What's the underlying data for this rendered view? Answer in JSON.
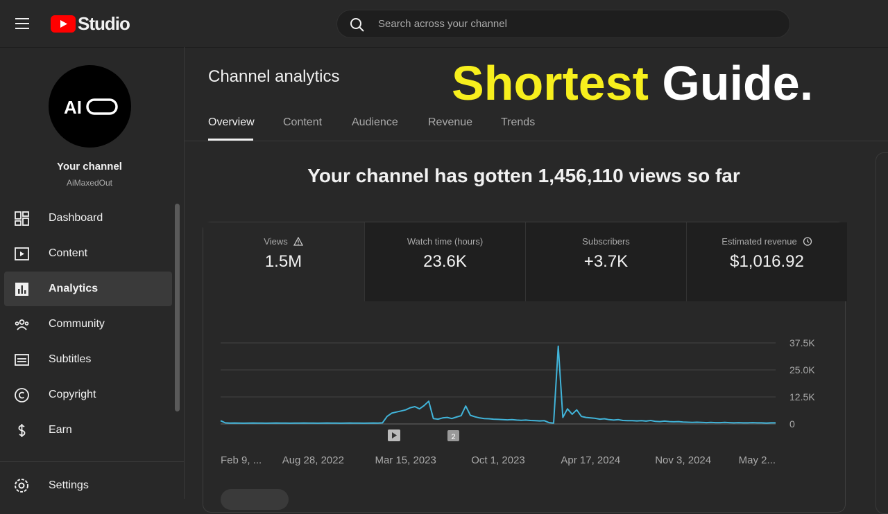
{
  "header": {
    "logo": "Studio",
    "search_placeholder": "Search across your channel"
  },
  "sidebar": {
    "avatar_text": "AI",
    "channel_title": "Your channel",
    "channel_name": "AiMaxedOut",
    "nav": [
      "Dashboard",
      "Content",
      "Analytics",
      "Community",
      "Subtitles",
      "Copyright",
      "Earn"
    ],
    "settings": "Settings"
  },
  "page": {
    "title": "Channel analytics",
    "tabs": [
      "Overview",
      "Content",
      "Audience",
      "Revenue",
      "Trends"
    ],
    "overlay": [
      "Shortest",
      "Guide."
    ],
    "headline": "Your channel has gotten 1,456,110 views so far"
  },
  "metrics": [
    {
      "label": "Views",
      "value": "1.5M"
    },
    {
      "label": "Watch time (hours)",
      "value": "23.6K"
    },
    {
      "label": "Subscribers",
      "value": "+3.7K"
    },
    {
      "label": "Estimated revenue",
      "value": "$1,016.92"
    }
  ],
  "chart_data": {
    "type": "line",
    "categories": [
      "Feb 9, ...",
      null,
      null,
      null,
      null,
      null,
      null,
      null,
      null,
      null,
      null,
      null,
      null,
      null,
      null,
      null,
      null,
      null,
      null,
      null,
      "Aug 28, 2022",
      null,
      null,
      null,
      null,
      null,
      null,
      null,
      null,
      null,
      null,
      null,
      null,
      null,
      null,
      null,
      null,
      null,
      null,
      null,
      "Mar 15, 2023",
      null,
      null,
      null,
      null,
      null,
      null,
      null,
      null,
      null,
      null,
      null,
      null,
      null,
      null,
      null,
      null,
      null,
      null,
      null,
      "Oct 1, 2023",
      null,
      null,
      null,
      null,
      null,
      null,
      null,
      null,
      null,
      null,
      null,
      null,
      null,
      null,
      null,
      null,
      null,
      null,
      null,
      "Apr 17, 2024",
      null,
      null,
      null,
      null,
      null,
      null,
      null,
      null,
      null,
      null,
      null,
      null,
      null,
      null,
      null,
      null,
      null,
      null,
      null,
      "Nov 3, 2024",
      null,
      null,
      null,
      null,
      null,
      null,
      null,
      null,
      null,
      null,
      null,
      null,
      null,
      null,
      null,
      null,
      null,
      null,
      null,
      "May 2..."
    ],
    "series": [
      {
        "name": "Views",
        "color": "#41b4d9",
        "values": [
          1500,
          500,
          400,
          450,
          400,
          350,
          400,
          450,
          400,
          400,
          350,
          400,
          450,
          400,
          400,
          350,
          400,
          400,
          450,
          400,
          400,
          350,
          400,
          450,
          400,
          400,
          350,
          400,
          450,
          400,
          400,
          350,
          400,
          450,
          400,
          500,
          3500,
          5000,
          5500,
          6000,
          6500,
          7500,
          8000,
          7000,
          8500,
          10500,
          2500,
          2200,
          2800,
          3000,
          2500,
          3200,
          3800,
          8300,
          4000,
          3300,
          2800,
          2500,
          2400,
          2200,
          2100,
          2000,
          1900,
          2000,
          1800,
          1700,
          1800,
          1600,
          1500,
          1400,
          1500,
          600,
          400,
          36000,
          3000,
          7000,
          4500,
          6500,
          3500,
          3000,
          2800,
          2600,
          2200,
          2400,
          2000,
          1800,
          2000,
          1600,
          1500,
          1500,
          1400,
          1500,
          1300,
          1600,
          1200,
          1100,
          1300,
          1100,
          1000,
          1100,
          900,
          800,
          700,
          800,
          700,
          600,
          700,
          600,
          600,
          700,
          600,
          500,
          600,
          500,
          500,
          600,
          500,
          500,
          400,
          500,
          500
        ]
      }
    ],
    "ylim": [
      0,
      37500
    ],
    "yticks": [
      0,
      {
        "value": 12500,
        "label": "12.5K"
      },
      {
        "value": 25000,
        "label": "25.0K"
      },
      {
        "value": 37500,
        "label": "37.5K"
      }
    ],
    "grid": true,
    "annotation": "2"
  }
}
